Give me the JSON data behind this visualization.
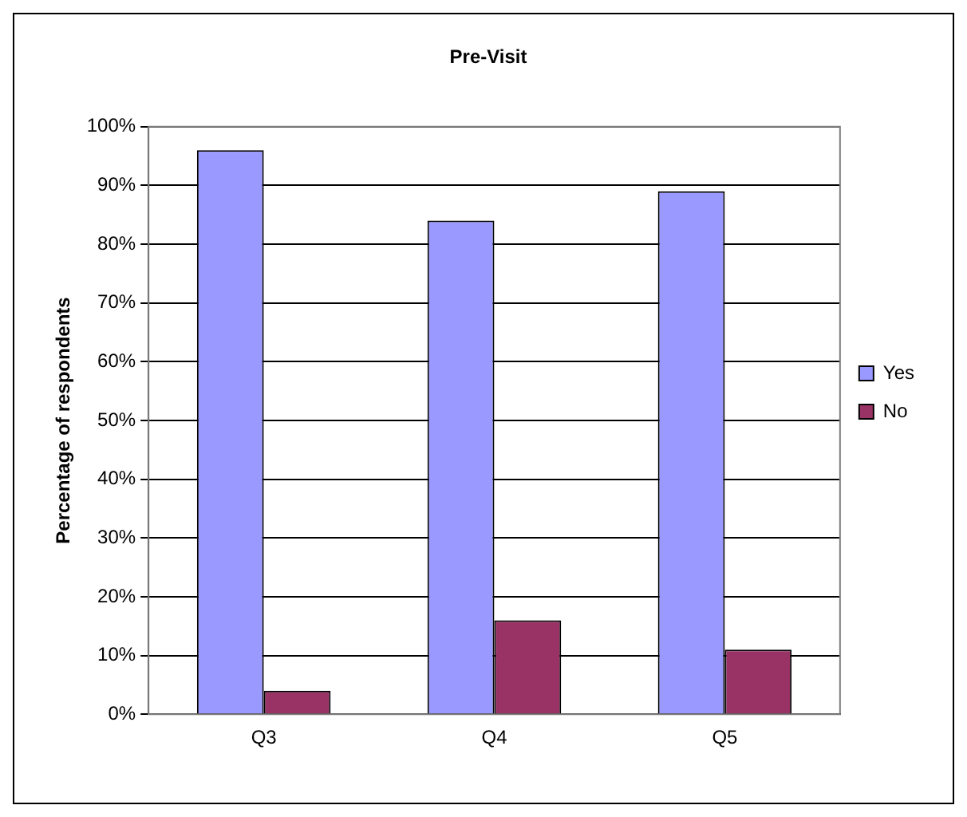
{
  "chart_data": {
    "type": "bar",
    "title": "Pre-Visit",
    "ylabel": "Percentage of respondents",
    "categories": [
      "Q3",
      "Q4",
      "Q5"
    ],
    "series": [
      {
        "name": "Yes",
        "color": "#9999ff",
        "values": [
          96,
          84,
          89
        ]
      },
      {
        "name": "No",
        "color": "#993366",
        "values": [
          4,
          16,
          11
        ]
      }
    ],
    "ylim": [
      0,
      100
    ],
    "yticks": [
      {
        "value": 0,
        "label": "0%"
      },
      {
        "value": 10,
        "label": "10%"
      },
      {
        "value": 20,
        "label": "20%"
      },
      {
        "value": 30,
        "label": "30%"
      },
      {
        "value": 40,
        "label": "40%"
      },
      {
        "value": 50,
        "label": "50%"
      },
      {
        "value": 60,
        "label": "60%"
      },
      {
        "value": 70,
        "label": "70%"
      },
      {
        "value": 80,
        "label": "80%"
      },
      {
        "value": 90,
        "label": "90%"
      },
      {
        "value": 100,
        "label": "100%"
      }
    ],
    "grid": "y",
    "legend": "right"
  }
}
